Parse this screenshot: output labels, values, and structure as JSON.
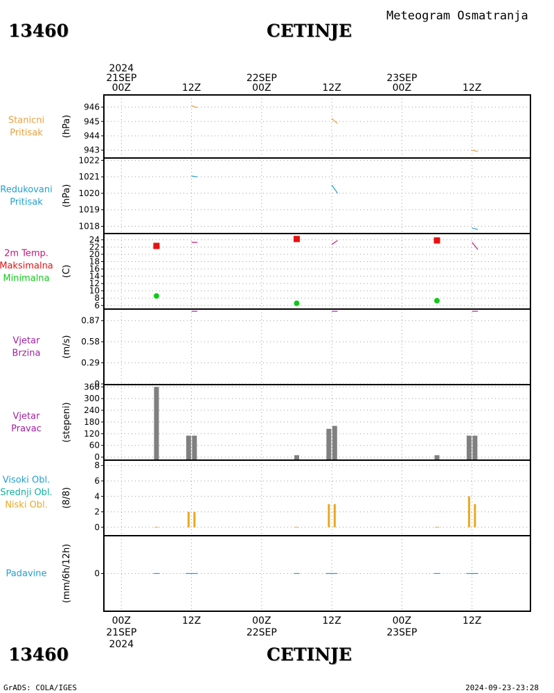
{
  "header": {
    "station_id": "13460",
    "station_name": "CETINJE",
    "meteogram_title": "Meteogram  Osmatranja"
  },
  "footer": {
    "credit": "GrADS: COLA/IGES",
    "timestamp": "2024-09-23-23:28"
  },
  "time_axis": {
    "top_labels": [
      {
        "t": 0,
        "lines": [
          "2024",
          "21SEP",
          "00Z"
        ]
      },
      {
        "t": 12,
        "lines": [
          "12Z"
        ]
      },
      {
        "t": 24,
        "lines": [
          "22SEP",
          "00Z"
        ]
      },
      {
        "t": 36,
        "lines": [
          "12Z"
        ]
      },
      {
        "t": 48,
        "lines": [
          "23SEP",
          "00Z"
        ]
      },
      {
        "t": 60,
        "lines": [
          "12Z"
        ]
      }
    ],
    "bottom_labels": [
      {
        "t": 0,
        "lines": [
          "00Z",
          "21SEP",
          "2024"
        ]
      },
      {
        "t": 12,
        "lines": [
          "12Z"
        ]
      },
      {
        "t": 24,
        "lines": [
          "00Z",
          "22SEP"
        ]
      },
      {
        "t": 36,
        "lines": [
          "12Z"
        ]
      },
      {
        "t": 48,
        "lines": [
          "00Z",
          "23SEP"
        ]
      },
      {
        "t": 60,
        "lines": [
          "12Z"
        ]
      }
    ],
    "range_hours": [
      -3,
      70
    ]
  },
  "colors": {
    "station_pressure": "#e8a040",
    "reduced_pressure": "#20a0d0",
    "temp_2m": "#c81878",
    "temp_max": "#e81010",
    "temp_min": "#10c818",
    "wind_speed": "#a020a0",
    "wind_dir_label": "#a020a0",
    "bar_gray": "#808080",
    "high_cloud": "#20a0d0",
    "mid_cloud": "#10b0a0",
    "low_cloud": "#e8a820",
    "precip": "#20a0d0"
  },
  "chart_data": [
    {
      "type": "line",
      "panel": "station_pressure",
      "side_labels": [
        {
          "text": "Stanicni",
          "color": "station_pressure"
        },
        {
          "text": "Pritisak",
          "color": "station_pressure"
        }
      ],
      "ylabel": "(hPa)",
      "ylim": [
        942.5,
        946.8
      ],
      "yticks": [
        943,
        944,
        945,
        946
      ],
      "series": [
        {
          "color": "station_pressure",
          "segments": [
            [
              [
                12.0,
                946.1
              ],
              [
                13.0,
                945.95
              ]
            ],
            [
              [
                36.0,
                945.2
              ],
              [
                37.0,
                944.85
              ]
            ],
            [
              [
                60.0,
                943.0
              ],
              [
                61.0,
                942.9
              ]
            ]
          ]
        }
      ]
    },
    {
      "type": "line",
      "panel": "reduced_pressure",
      "side_labels": [
        {
          "text": "Redukovani",
          "color": "reduced_pressure"
        },
        {
          "text": "Pritisak",
          "color": "reduced_pressure"
        }
      ],
      "ylabel": "(hPa)",
      "ylim": [
        1017.6,
        1022.1
      ],
      "yticks": [
        1018,
        1019,
        1020,
        1021,
        1022
      ],
      "series": [
        {
          "color": "reduced_pressure",
          "segments": [
            [
              [
                12.0,
                1021.05
              ],
              [
                13.0,
                1021.0
              ]
            ],
            [
              [
                36.0,
                1020.5
              ],
              [
                37.0,
                1020.0
              ]
            ],
            [
              [
                60.0,
                1017.9
              ],
              [
                61.0,
                1017.8
              ]
            ]
          ]
        }
      ]
    },
    {
      "type": "line",
      "panel": "temperature",
      "side_labels": [
        {
          "text": "2m Temp.",
          "color": "temp_2m"
        },
        {
          "text": "Maksimalna",
          "color": "temp_max"
        },
        {
          "text": "Minimalna",
          "color": "temp_min"
        }
      ],
      "ylabel": "(C)",
      "ylim": [
        5.2,
        25.5
      ],
      "yticks": [
        6,
        8,
        10,
        12,
        14,
        16,
        18,
        20,
        22,
        24
      ],
      "series": [
        {
          "color": "temp_2m",
          "segments": [
            [
              [
                12.0,
                23.3
              ],
              [
                13.0,
                23.3
              ]
            ],
            [
              [
                36.0,
                22.7
              ],
              [
                37.0,
                23.8
              ]
            ],
            [
              [
                60.0,
                23.3
              ],
              [
                61.0,
                21.3
              ]
            ]
          ]
        }
      ],
      "max_points": [
        {
          "t": 6,
          "v": 22.3
        },
        {
          "t": 30,
          "v": 24.2
        },
        {
          "t": 54,
          "v": 23.8
        }
      ],
      "min_points": [
        {
          "t": 6,
          "v": 8.6
        },
        {
          "t": 30,
          "v": 6.6
        },
        {
          "t": 54,
          "v": 7.3
        }
      ]
    },
    {
      "type": "line",
      "panel": "wind_speed",
      "side_labels": [
        {
          "text": "Vjetar",
          "color": "wind_speed"
        },
        {
          "text": "Brzina",
          "color": "wind_speed"
        }
      ],
      "ylabel": "(m/s)",
      "ylim": [
        0,
        1.02
      ],
      "yticks": [
        0,
        0.29,
        0.58,
        0.87
      ],
      "series": [
        {
          "color": "wind_speed",
          "segments": [
            [
              [
                12.0,
                1.0
              ],
              [
                13.0,
                1.0
              ]
            ],
            [
              [
                36.0,
                1.0
              ],
              [
                37.0,
                1.0
              ]
            ],
            [
              [
                60.0,
                1.0
              ],
              [
                61.0,
                1.0
              ]
            ]
          ]
        }
      ]
    },
    {
      "type": "bar",
      "panel": "wind_direction",
      "side_labels": [
        {
          "text": "Vjetar",
          "color": "wind_dir_label"
        },
        {
          "text": "Pravac",
          "color": "wind_dir_label"
        }
      ],
      "ylabel": "(stepeni)",
      "ylim": [
        -12,
        368
      ],
      "yticks": [
        0,
        60,
        120,
        180,
        240,
        300,
        360
      ],
      "bars": [
        {
          "t": 6,
          "v": 360
        },
        {
          "t": 11.5,
          "v": 110
        },
        {
          "t": 12.5,
          "v": 110
        },
        {
          "t": 30,
          "v": 10
        },
        {
          "t": 35.5,
          "v": 145
        },
        {
          "t": 36.5,
          "v": 160
        },
        {
          "t": 54,
          "v": 10
        },
        {
          "t": 59.5,
          "v": 110
        },
        {
          "t": 60.5,
          "v": 110
        }
      ]
    },
    {
      "type": "bar",
      "panel": "clouds",
      "side_labels": [
        {
          "text": "Visoki Obl.",
          "color": "high_cloud"
        },
        {
          "text": "Srednji Obl.",
          "color": "mid_cloud"
        },
        {
          "text": "Niski Obl.",
          "color": "low_cloud"
        }
      ],
      "ylabel": "(8/8)",
      "ylim": [
        -1,
        8.6
      ],
      "yticks": [
        0,
        2,
        4,
        6,
        8
      ],
      "bars": [
        {
          "t": 6,
          "v": 0
        },
        {
          "t": 11.5,
          "v": 2
        },
        {
          "t": 12.5,
          "v": 2
        },
        {
          "t": 30,
          "v": 0
        },
        {
          "t": 35.5,
          "v": 3
        },
        {
          "t": 36.5,
          "v": 3
        },
        {
          "t": 54,
          "v": 0
        },
        {
          "t": 59.5,
          "v": 4
        },
        {
          "t": 60.5,
          "v": 3
        }
      ]
    },
    {
      "type": "line",
      "panel": "precipitation",
      "side_labels": [
        {
          "text": "Padavine",
          "color": "precip"
        }
      ],
      "ylabel": "(mm/6h/12h)",
      "ylim": [
        -5,
        5
      ],
      "yticks": [
        0
      ],
      "series": [
        {
          "color": "precip",
          "segments": [
            [
              [
                5.5,
                0
              ],
              [
                6.5,
                0
              ]
            ],
            [
              [
                11.0,
                0
              ],
              [
                13.0,
                0
              ]
            ],
            [
              [
                29.5,
                0
              ],
              [
                30.5,
                0
              ]
            ],
            [
              [
                35.0,
                0
              ],
              [
                37.0,
                0
              ]
            ],
            [
              [
                53.5,
                0
              ],
              [
                54.5,
                0
              ]
            ],
            [
              [
                59.0,
                0
              ],
              [
                61.0,
                0
              ]
            ]
          ]
        }
      ]
    }
  ]
}
